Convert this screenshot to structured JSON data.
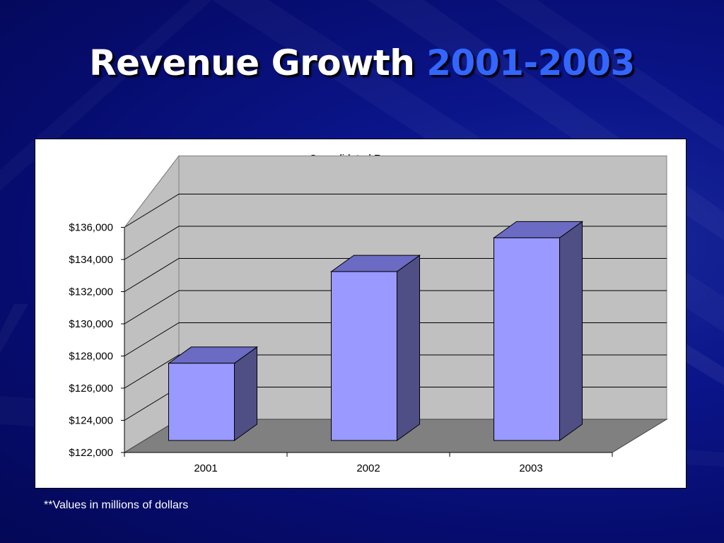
{
  "slide": {
    "title_main": "Revenue Growth",
    "title_accent": "2001-2003",
    "footnote": "**Values in millions of dollars"
  },
  "colors": {
    "background": "#0a148a",
    "title_text": "#ffffff",
    "title_accent": "#3366ff",
    "bar_front": "#9999ff",
    "bar_top": "#6b6bc4",
    "bar_side": "#4f4f86",
    "wall": "#c0c0c0",
    "floor": "#808080"
  },
  "chart_data": {
    "type": "bar",
    "style": "3d-column",
    "title": "Consolidated Revenue",
    "categories": [
      "2001",
      "2002",
      "2003"
    ],
    "values": [
      126800,
      132500,
      134600
    ],
    "ylim": [
      122000,
      136000
    ],
    "yticks": [
      122000,
      124000,
      126000,
      128000,
      130000,
      132000,
      134000,
      136000
    ],
    "ytick_labels": [
      "$122,000",
      "$124,000",
      "$126,000",
      "$128,000",
      "$130,000",
      "$132,000",
      "$134,000",
      "$136,000"
    ],
    "grid": true,
    "legend": "none"
  }
}
